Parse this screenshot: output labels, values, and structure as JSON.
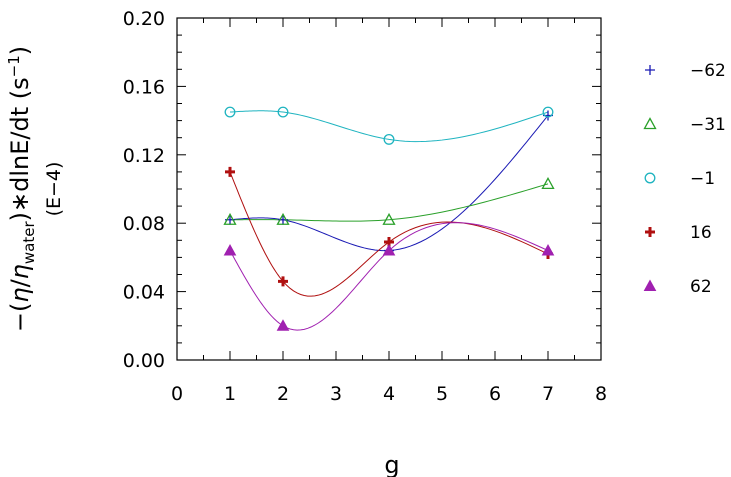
{
  "chart_data": {
    "type": "line",
    "title": "",
    "xlabel": "g",
    "ylabel": {
      "prefix": "−(",
      "eta": "η",
      "slash": "/",
      "eta2": "η",
      "sub": "water",
      "suffix": ")∗dlnE/dt  (s",
      "sup": "−1",
      "close": ")",
      "scale": "(E−4)"
    },
    "xlim": [
      0,
      8
    ],
    "ylim": [
      0,
      0.2
    ],
    "xticks": [
      "0",
      "1",
      "2",
      "3",
      "4",
      "5",
      "6",
      "7",
      "8"
    ],
    "yticks": [
      "0.00",
      "0.04",
      "0.08",
      "0.12",
      "0.16",
      "0.20"
    ],
    "grid": false,
    "legend_position": "right",
    "series": [
      {
        "name": "−62",
        "color": "#1a1ab4",
        "marker": "plus-thin",
        "points": [
          [
            1,
            0.082
          ],
          [
            2,
            0.082
          ],
          [
            4,
            0.064
          ],
          [
            7,
            0.143
          ]
        ]
      },
      {
        "name": "−31",
        "color": "#2aa02a",
        "marker": "triangle-open",
        "points": [
          [
            1,
            0.082
          ],
          [
            2,
            0.082
          ],
          [
            4,
            0.082
          ],
          [
            7,
            0.103
          ]
        ]
      },
      {
        "name": "−1",
        "color": "#1fb4c0",
        "marker": "circle-open",
        "points": [
          [
            1,
            0.145
          ],
          [
            2,
            0.145
          ],
          [
            4,
            0.129
          ],
          [
            7,
            0.145
          ]
        ]
      },
      {
        "name": "16",
        "color": "#b01010",
        "marker": "plus-bold",
        "points": [
          [
            1,
            0.11
          ],
          [
            2,
            0.046
          ],
          [
            4,
            0.069
          ],
          [
            7,
            0.062
          ]
        ]
      },
      {
        "name": "62",
        "color": "#a020b0",
        "marker": "triangle-filled",
        "points": [
          [
            1,
            0.064
          ],
          [
            2,
            0.02
          ],
          [
            4,
            0.064
          ],
          [
            7,
            0.064
          ]
        ]
      }
    ]
  }
}
